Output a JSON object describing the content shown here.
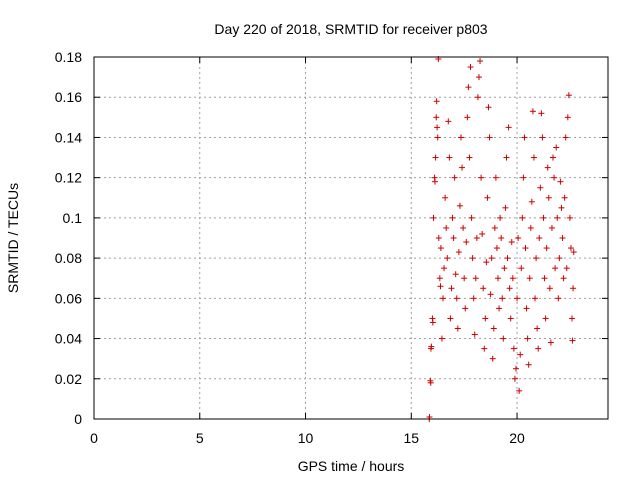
{
  "chart_data": {
    "type": "scatter",
    "title": "Day 220 of 2018, SRMTID for receiver p803",
    "xlabel": "GPS time / hours",
    "ylabel": "SRMTID / TECUs",
    "xlim": [
      0,
      24.3
    ],
    "ylim": [
      0,
      0.18
    ],
    "xticks": [
      0,
      5,
      10,
      15,
      20
    ],
    "yticks": [
      0,
      0.02,
      0.04,
      0.06,
      0.08,
      0.1,
      0.12,
      0.14,
      0.16,
      0.18
    ],
    "xtick_labels": [
      "0",
      "5",
      "10",
      "15",
      "20"
    ],
    "ytick_labels": [
      "0",
      "0.02",
      "0.04",
      "0.06",
      "0.08",
      "0.1",
      "0.12",
      "0.14",
      "0.16",
      "0.18"
    ],
    "grid": true,
    "marker": "+",
    "color": "#cc0000",
    "series": [
      {
        "name": "SRMTID",
        "points": [
          [
            15.85,
            0.0
          ],
          [
            15.86,
            0.001
          ],
          [
            15.9,
            0.019
          ],
          [
            15.92,
            0.018
          ],
          [
            15.93,
            0.035
          ],
          [
            15.95,
            0.036
          ],
          [
            16.0,
            0.05
          ],
          [
            16.02,
            0.048
          ],
          [
            16.05,
            0.1
          ],
          [
            16.1,
            0.12
          ],
          [
            16.12,
            0.118
          ],
          [
            16.15,
            0.13
          ],
          [
            16.18,
            0.15
          ],
          [
            16.2,
            0.158
          ],
          [
            16.22,
            0.145
          ],
          [
            16.25,
            0.14
          ],
          [
            16.28,
            0.179
          ],
          [
            16.3,
            0.09
          ],
          [
            16.35,
            0.07
          ],
          [
            16.38,
            0.066
          ],
          [
            16.4,
            0.085
          ],
          [
            16.45,
            0.04
          ],
          [
            16.5,
            0.06
          ],
          [
            16.55,
            0.075
          ],
          [
            16.6,
            0.11
          ],
          [
            16.65,
            0.095
          ],
          [
            16.7,
            0.08
          ],
          [
            16.75,
            0.148
          ],
          [
            16.8,
            0.13
          ],
          [
            16.85,
            0.05
          ],
          [
            16.9,
            0.065
          ],
          [
            16.95,
            0.1
          ],
          [
            17.0,
            0.09
          ],
          [
            17.05,
            0.12
          ],
          [
            17.1,
            0.072
          ],
          [
            17.15,
            0.06
          ],
          [
            17.2,
            0.045
          ],
          [
            17.25,
            0.083
          ],
          [
            17.3,
            0.106
          ],
          [
            17.35,
            0.14
          ],
          [
            17.4,
            0.125
          ],
          [
            17.45,
            0.095
          ],
          [
            17.5,
            0.07
          ],
          [
            17.55,
            0.055
          ],
          [
            17.6,
            0.088
          ],
          [
            17.65,
            0.15
          ],
          [
            17.7,
            0.165
          ],
          [
            17.75,
            0.13
          ],
          [
            17.8,
            0.175
          ],
          [
            17.85,
            0.1
          ],
          [
            17.9,
            0.08
          ],
          [
            17.95,
            0.06
          ],
          [
            18.0,
            0.042
          ],
          [
            18.05,
            0.07
          ],
          [
            18.1,
            0.09
          ],
          [
            18.15,
            0.16
          ],
          [
            18.2,
            0.17
          ],
          [
            18.25,
            0.178
          ],
          [
            18.3,
            0.12
          ],
          [
            18.35,
            0.092
          ],
          [
            18.4,
            0.065
          ],
          [
            18.45,
            0.035
          ],
          [
            18.5,
            0.05
          ],
          [
            18.55,
            0.078
          ],
          [
            18.6,
            0.11
          ],
          [
            18.65,
            0.155
          ],
          [
            18.7,
            0.14
          ],
          [
            18.75,
            0.062
          ],
          [
            18.8,
            0.08
          ],
          [
            18.85,
            0.03
          ],
          [
            18.9,
            0.045
          ],
          [
            18.95,
            0.095
          ],
          [
            19.0,
            0.12
          ],
          [
            19.05,
            0.085
          ],
          [
            19.1,
            0.07
          ],
          [
            19.15,
            0.055
          ],
          [
            19.2,
            0.1
          ],
          [
            19.25,
            0.09
          ],
          [
            19.3,
            0.06
          ],
          [
            19.35,
            0.04
          ],
          [
            19.4,
            0.075
          ],
          [
            19.45,
            0.105
          ],
          [
            19.5,
            0.13
          ],
          [
            19.55,
            0.08
          ],
          [
            19.6,
            0.145
          ],
          [
            19.65,
            0.065
          ],
          [
            19.7,
            0.05
          ],
          [
            19.75,
            0.088
          ],
          [
            19.8,
            0.07
          ],
          [
            19.85,
            0.035
          ],
          [
            19.9,
            0.02
          ],
          [
            19.95,
            0.025
          ],
          [
            20.0,
            0.06
          ],
          [
            20.05,
            0.09
          ],
          [
            20.1,
            0.014
          ],
          [
            20.15,
            0.032
          ],
          [
            20.2,
            0.075
          ],
          [
            20.25,
            0.1
          ],
          [
            20.3,
            0.12
          ],
          [
            20.35,
            0.14
          ],
          [
            20.4,
            0.085
          ],
          [
            20.45,
            0.055
          ],
          [
            20.5,
            0.04
          ],
          [
            20.55,
            0.027
          ],
          [
            20.6,
            0.07
          ],
          [
            20.65,
            0.095
          ],
          [
            20.7,
            0.108
          ],
          [
            20.75,
            0.153
          ],
          [
            20.8,
            0.13
          ],
          [
            20.85,
            0.06
          ],
          [
            20.9,
            0.08
          ],
          [
            20.95,
            0.045
          ],
          [
            21.0,
            0.035
          ],
          [
            21.05,
            0.09
          ],
          [
            21.1,
            0.115
          ],
          [
            21.15,
            0.152
          ],
          [
            21.2,
            0.14
          ],
          [
            21.25,
            0.1
          ],
          [
            21.3,
            0.07
          ],
          [
            21.35,
            0.05
          ],
          [
            21.4,
            0.085
          ],
          [
            21.45,
            0.125
          ],
          [
            21.5,
            0.11
          ],
          [
            21.55,
            0.065
          ],
          [
            21.6,
            0.038
          ],
          [
            21.65,
            0.095
          ],
          [
            21.7,
            0.13
          ],
          [
            21.75,
            0.12
          ],
          [
            21.8,
            0.075
          ],
          [
            21.85,
            0.135
          ],
          [
            21.9,
            0.1
          ],
          [
            21.95,
            0.06
          ],
          [
            22.0,
            0.08
          ],
          [
            22.05,
            0.118
          ],
          [
            22.1,
            0.105
          ],
          [
            22.15,
            0.09
          ],
          [
            22.2,
            0.07
          ],
          [
            22.25,
            0.11
          ],
          [
            22.3,
            0.14
          ],
          [
            22.35,
            0.075
          ],
          [
            22.4,
            0.15
          ],
          [
            22.45,
            0.161
          ],
          [
            22.5,
            0.1
          ],
          [
            22.55,
            0.085
          ],
          [
            22.6,
            0.05
          ],
          [
            22.62,
            0.039
          ],
          [
            22.65,
            0.065
          ],
          [
            22.68,
            0.083
          ]
        ]
      }
    ]
  }
}
